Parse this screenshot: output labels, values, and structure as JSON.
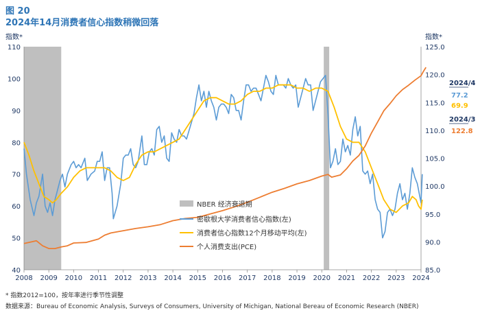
{
  "figure": {
    "title": "图 20",
    "subtitle": "2024年14月消费者信心指数稍微回落",
    "footnote": "* 指数2012=100，按年率进行季节性调整",
    "source": "数据来源：Bureau of Economic Analysis, Surveys of Consumers, University of Michigan, National Bereau of Economic Research (NBER)"
  },
  "colors": {
    "sentiment": "#5b9bd5",
    "moving_avg": "#ffc000",
    "pce": "#ed7d31",
    "recession": "#bfbfbf",
    "axis_text": "#1f3864"
  },
  "chart_data": {
    "type": "line",
    "x_range": [
      2008,
      2024
    ],
    "x_ticks": [
      "2008",
      "2009",
      "2010",
      "2011",
      "2012",
      "2013",
      "2014",
      "2015",
      "2016",
      "2017",
      "2018",
      "2019",
      "2020",
      "2021",
      "2022",
      "2023",
      "2024"
    ],
    "left_axis": {
      "label": "指数*",
      "range": [
        40,
        110
      ],
      "ticks": [
        "40",
        "50",
        "60",
        "70",
        "80",
        "90",
        "100",
        "110"
      ]
    },
    "right_axis": {
      "label": "指数*",
      "range": [
        85,
        125
      ],
      "ticks": [
        "85.0",
        "90.0",
        "95.0",
        "100.0",
        "105.0",
        "110.0",
        "115.0",
        "120.0",
        "125.0"
      ]
    },
    "recessions": [
      {
        "name": "NBER 经济衰退期",
        "start": 2008.0,
        "end": 2009.5
      },
      {
        "name": "NBER 经济衰退期",
        "start": 2020.08,
        "end": 2020.3
      }
    ],
    "legend": {
      "recession": "NBER 经济衰退期",
      "sentiment": "密歇根大学消费者信心指数(左)",
      "moving_avg": "消费者信心指数12个月移动平均(左)",
      "pce": "个人消费支出(PCE)"
    },
    "annotations": [
      {
        "date": "2024/4",
        "value": "77.2",
        "value2": "69.9"
      },
      {
        "date": "2024/3",
        "value": "122.8"
      }
    ],
    "series": [
      {
        "name": "密歇根大学消费者信心指数(左)",
        "axis": "left",
        "points": [
          [
            2008.0,
            78
          ],
          [
            2008.1,
            70
          ],
          [
            2008.25,
            62
          ],
          [
            2008.4,
            57
          ],
          [
            2008.5,
            61
          ],
          [
            2008.6,
            63
          ],
          [
            2008.75,
            70
          ],
          [
            2008.85,
            60
          ],
          [
            2008.95,
            58
          ],
          [
            2009.05,
            61
          ],
          [
            2009.15,
            57
          ],
          [
            2009.25,
            62
          ],
          [
            2009.35,
            65
          ],
          [
            2009.45,
            68
          ],
          [
            2009.55,
            70
          ],
          [
            2009.65,
            66
          ],
          [
            2009.75,
            70
          ],
          [
            2009.9,
            73
          ],
          [
            2010.0,
            74
          ],
          [
            2010.1,
            72
          ],
          [
            2010.2,
            73
          ],
          [
            2010.3,
            72
          ],
          [
            2010.45,
            75
          ],
          [
            2010.55,
            68
          ],
          [
            2010.7,
            70
          ],
          [
            2010.85,
            71
          ],
          [
            2010.95,
            74
          ],
          [
            2011.05,
            74
          ],
          [
            2011.15,
            77
          ],
          [
            2011.25,
            68
          ],
          [
            2011.35,
            72
          ],
          [
            2011.45,
            72
          ],
          [
            2011.55,
            64
          ],
          [
            2011.6,
            56
          ],
          [
            2011.75,
            60
          ],
          [
            2011.9,
            67
          ],
          [
            2012.0,
            75
          ],
          [
            2012.1,
            76
          ],
          [
            2012.2,
            76
          ],
          [
            2012.3,
            78
          ],
          [
            2012.4,
            73
          ],
          [
            2012.5,
            72
          ],
          [
            2012.6,
            74
          ],
          [
            2012.75,
            82
          ],
          [
            2012.85,
            73
          ],
          [
            2012.95,
            73
          ],
          [
            2013.05,
            77
          ],
          [
            2013.15,
            78
          ],
          [
            2013.25,
            76
          ],
          [
            2013.35,
            84
          ],
          [
            2013.45,
            85
          ],
          [
            2013.55,
            80
          ],
          [
            2013.65,
            82
          ],
          [
            2013.75,
            75
          ],
          [
            2013.85,
            74
          ],
          [
            2013.95,
            83
          ],
          [
            2014.05,
            81
          ],
          [
            2014.15,
            80
          ],
          [
            2014.25,
            84
          ],
          [
            2014.35,
            82
          ],
          [
            2014.45,
            82
          ],
          [
            2014.55,
            81
          ],
          [
            2014.7,
            85
          ],
          [
            2014.85,
            89
          ],
          [
            2014.95,
            94
          ],
          [
            2015.05,
            98
          ],
          [
            2015.15,
            93
          ],
          [
            2015.25,
            96
          ],
          [
            2015.35,
            91
          ],
          [
            2015.45,
            96
          ],
          [
            2015.55,
            93
          ],
          [
            2015.65,
            91
          ],
          [
            2015.75,
            87
          ],
          [
            2015.85,
            91
          ],
          [
            2015.95,
            92
          ],
          [
            2016.05,
            92
          ],
          [
            2016.15,
            91
          ],
          [
            2016.25,
            89
          ],
          [
            2016.35,
            95
          ],
          [
            2016.45,
            94
          ],
          [
            2016.55,
            90
          ],
          [
            2016.65,
            90
          ],
          [
            2016.75,
            87
          ],
          [
            2016.85,
            93
          ],
          [
            2016.95,
            98
          ],
          [
            2017.05,
            98
          ],
          [
            2017.15,
            96
          ],
          [
            2017.25,
            97
          ],
          [
            2017.35,
            97
          ],
          [
            2017.45,
            95
          ],
          [
            2017.55,
            93
          ],
          [
            2017.65,
            97
          ],
          [
            2017.75,
            101
          ],
          [
            2017.85,
            99
          ],
          [
            2017.95,
            96
          ],
          [
            2018.05,
            95
          ],
          [
            2018.15,
            101
          ],
          [
            2018.25,
            98
          ],
          [
            2018.35,
            98
          ],
          [
            2018.45,
            98
          ],
          [
            2018.55,
            97
          ],
          [
            2018.65,
            100
          ],
          [
            2018.75,
            98
          ],
          [
            2018.85,
            97
          ],
          [
            2018.95,
            98
          ],
          [
            2019.05,
            91
          ],
          [
            2019.15,
            94
          ],
          [
            2019.25,
            97
          ],
          [
            2019.35,
            100
          ],
          [
            2019.45,
            98
          ],
          [
            2019.55,
            98
          ],
          [
            2019.65,
            90
          ],
          [
            2019.75,
            93
          ],
          [
            2019.85,
            96
          ],
          [
            2019.95,
            99
          ],
          [
            2020.05,
            100
          ],
          [
            2020.15,
            101
          ],
          [
            2020.25,
            89
          ],
          [
            2020.35,
            72
          ],
          [
            2020.45,
            74
          ],
          [
            2020.55,
            78
          ],
          [
            2020.65,
            73
          ],
          [
            2020.75,
            74
          ],
          [
            2020.85,
            81
          ],
          [
            2020.95,
            77
          ],
          [
            2021.05,
            79
          ],
          [
            2021.15,
            76
          ],
          [
            2021.25,
            84
          ],
          [
            2021.35,
            88
          ],
          [
            2021.45,
            82
          ],
          [
            2021.55,
            85
          ],
          [
            2021.65,
            71
          ],
          [
            2021.75,
            70
          ],
          [
            2021.85,
            71
          ],
          [
            2021.95,
            67
          ],
          [
            2022.05,
            70
          ],
          [
            2022.15,
            62
          ],
          [
            2022.25,
            59
          ],
          [
            2022.35,
            58
          ],
          [
            2022.45,
            50
          ],
          [
            2022.55,
            52
          ],
          [
            2022.65,
            58
          ],
          [
            2022.75,
            59
          ],
          [
            2022.85,
            57
          ],
          [
            2022.95,
            59
          ],
          [
            2023.05,
            64
          ],
          [
            2023.15,
            67
          ],
          [
            2023.25,
            62
          ],
          [
            2023.35,
            64
          ],
          [
            2023.45,
            59
          ],
          [
            2023.55,
            64
          ],
          [
            2023.65,
            72
          ],
          [
            2023.75,
            69
          ],
          [
            2023.85,
            67
          ],
          [
            2023.95,
            63
          ],
          [
            2024.0,
            61
          ],
          [
            2024.05,
            70
          ]
        ]
      },
      {
        "name": "消费者信心指数12个月移动平均(左)",
        "axis": "left",
        "points": [
          [
            2008.0,
            80
          ],
          [
            2008.2,
            76
          ],
          [
            2008.4,
            71
          ],
          [
            2008.6,
            67
          ],
          [
            2008.8,
            63
          ],
          [
            2009.0,
            62
          ],
          [
            2009.15,
            61
          ],
          [
            2009.3,
            62
          ],
          [
            2009.5,
            64
          ],
          [
            2009.75,
            66
          ],
          [
            2010.0,
            69
          ],
          [
            2010.25,
            71
          ],
          [
            2010.5,
            72
          ],
          [
            2010.75,
            72
          ],
          [
            2011.0,
            72
          ],
          [
            2011.25,
            72
          ],
          [
            2011.5,
            71
          ],
          [
            2011.75,
            69
          ],
          [
            2012.0,
            68
          ],
          [
            2012.25,
            69
          ],
          [
            2012.5,
            73
          ],
          [
            2012.75,
            76
          ],
          [
            2013.0,
            77
          ],
          [
            2013.25,
            77
          ],
          [
            2013.5,
            78
          ],
          [
            2013.75,
            79
          ],
          [
            2014.0,
            80
          ],
          [
            2014.25,
            81
          ],
          [
            2014.5,
            84
          ],
          [
            2014.75,
            87
          ],
          [
            2015.0,
            90
          ],
          [
            2015.25,
            93
          ],
          [
            2015.5,
            94
          ],
          [
            2015.75,
            94
          ],
          [
            2016.0,
            93
          ],
          [
            2016.25,
            92
          ],
          [
            2016.5,
            92
          ],
          [
            2016.75,
            93
          ],
          [
            2017.0,
            95
          ],
          [
            2017.25,
            96
          ],
          [
            2017.5,
            96
          ],
          [
            2017.75,
            97
          ],
          [
            2018.0,
            97
          ],
          [
            2018.25,
            98
          ],
          [
            2018.5,
            98
          ],
          [
            2018.75,
            98
          ],
          [
            2019.0,
            97
          ],
          [
            2019.25,
            97
          ],
          [
            2019.5,
            96
          ],
          [
            2019.75,
            97
          ],
          [
            2020.0,
            97
          ],
          [
            2020.25,
            96
          ],
          [
            2020.5,
            91
          ],
          [
            2020.75,
            85
          ],
          [
            2021.0,
            81
          ],
          [
            2021.25,
            80
          ],
          [
            2021.5,
            80
          ],
          [
            2021.75,
            77
          ],
          [
            2022.0,
            72
          ],
          [
            2022.25,
            67
          ],
          [
            2022.5,
            62
          ],
          [
            2022.75,
            59
          ],
          [
            2023.0,
            58
          ],
          [
            2023.25,
            60
          ],
          [
            2023.5,
            61
          ],
          [
            2023.65,
            63
          ],
          [
            2023.8,
            62
          ],
          [
            2023.9,
            60
          ],
          [
            2024.0,
            59
          ],
          [
            2024.05,
            62
          ]
        ]
      },
      {
        "name": "个人消费支出(PCE)",
        "axis": "right",
        "points": [
          [
            2008.0,
            89.7
          ],
          [
            2008.3,
            90.0
          ],
          [
            2008.5,
            90.2
          ],
          [
            2008.75,
            89.3
          ],
          [
            2009.0,
            88.8
          ],
          [
            2009.25,
            88.8
          ],
          [
            2009.5,
            89.1
          ],
          [
            2009.75,
            89.3
          ],
          [
            2010.0,
            89.8
          ],
          [
            2010.5,
            89.9
          ],
          [
            2011.0,
            90.5
          ],
          [
            2011.25,
            91.2
          ],
          [
            2011.5,
            91.6
          ],
          [
            2012.0,
            92.0
          ],
          [
            2012.5,
            92.4
          ],
          [
            2013.0,
            92.7
          ],
          [
            2013.5,
            93.1
          ],
          [
            2014.0,
            93.8
          ],
          [
            2014.5,
            94.2
          ],
          [
            2015.0,
            94.4
          ],
          [
            2015.5,
            95.0
          ],
          [
            2016.0,
            95.6
          ],
          [
            2016.5,
            96.3
          ],
          [
            2017.0,
            97.1
          ],
          [
            2017.5,
            98.0
          ],
          [
            2018.0,
            98.9
          ],
          [
            2018.5,
            99.6
          ],
          [
            2019.0,
            100.4
          ],
          [
            2019.5,
            101.0
          ],
          [
            2020.0,
            101.8
          ],
          [
            2020.25,
            102.1
          ],
          [
            2020.4,
            101.6
          ],
          [
            2020.75,
            102.0
          ],
          [
            2021.0,
            103.1
          ],
          [
            2021.25,
            104.5
          ],
          [
            2021.5,
            105.5
          ],
          [
            2021.75,
            107.2
          ],
          [
            2022.0,
            109.5
          ],
          [
            2022.25,
            111.5
          ],
          [
            2022.5,
            113.5
          ],
          [
            2022.75,
            114.8
          ],
          [
            2023.0,
            116.2
          ],
          [
            2023.25,
            117.3
          ],
          [
            2023.5,
            118.1
          ],
          [
            2023.75,
            119.0
          ],
          [
            2024.0,
            119.8
          ],
          [
            2024.1,
            120.6
          ],
          [
            2024.2,
            121.3
          ]
        ]
      }
    ]
  }
}
